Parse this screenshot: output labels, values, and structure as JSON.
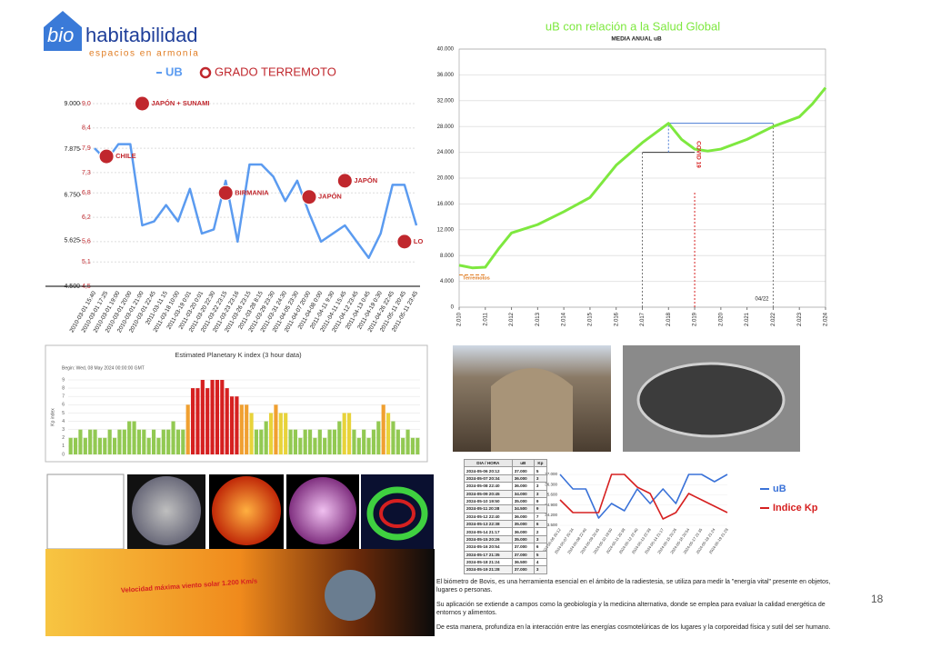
{
  "logo": {
    "mark": "bio",
    "name": "habitabilidad",
    "tagline": "espacios en armonía"
  },
  "chart_data": [
    {
      "type": "line",
      "legend": [
        "UB",
        "GRADO TERREMOTO"
      ],
      "categories": [
        "2010-03-01 15:40",
        "2010-03-01 17:25",
        "2010-03-01 19:00",
        "2010-03-01 20:00",
        "2010-03-01 21:00",
        "2010-03-01 22:45",
        "2011-03-11 15",
        "2011-03-18 10:00",
        "2011-03-19 0:01",
        "2011-03-20 0:01",
        "2011-03-20 22:30",
        "2011-03-22 23:15",
        "2011-03-23 23:16",
        "2011-03-26 23:15",
        "2011-03-28 8:15",
        "2011-03-29 23:30",
        "2011-03-31 24:30",
        "2011-04-05 23:30",
        "2011-04-07 20:00",
        "2011-04-08 0:00",
        "2011-04-11 9:30",
        "2011-04-11 15:45",
        "2011-04-12 23:45",
        "2011-04-13 0:45",
        "2011-04-19 0:30",
        "2011-04-26 22:45",
        "2011-05-11 20:45",
        "2011-05-11 23:45"
      ],
      "series": [
        {
          "name": "UB",
          "color": "#5b9bf0",
          "values": [
            7900,
            7600,
            8000,
            8000,
            6000,
            6100,
            6500,
            6100,
            6900,
            5800,
            5900,
            7100,
            5600,
            7500,
            7500,
            7200,
            6600,
            7100,
            6300,
            5600,
            5800,
            6000,
            5600,
            5200,
            5800,
            7000,
            7000,
            6000
          ]
        },
        {
          "name": "GRADO TERREMOTO",
          "type": "scatter",
          "axis": "y2",
          "color": "#c0272d",
          "values": [
            null,
            7.7,
            null,
            null,
            9.0,
            null,
            null,
            null,
            null,
            null,
            null,
            6.8,
            null,
            null,
            null,
            null,
            null,
            null,
            6.7,
            null,
            null,
            7.1,
            null,
            null,
            null,
            null,
            5.6,
            null
          ],
          "point_labels": [
            null,
            "CHILE",
            null,
            null,
            "JAPÓN + SUNAMI",
            null,
            null,
            null,
            null,
            null,
            null,
            "BIRMANIA",
            null,
            null,
            null,
            null,
            null,
            null,
            "JAPÓN",
            null,
            null,
            "JAPÓN",
            null,
            null,
            null,
            null,
            "LO",
            null
          ]
        }
      ],
      "ylim": [
        4500,
        9000
      ],
      "yticks": [
        {
          "value": 4500,
          "label": "4.500"
        },
        {
          "value": 5625,
          "label": "5.625"
        },
        {
          "value": 6750,
          "label": "6.750"
        },
        {
          "value": 7875,
          "label": "7.875"
        },
        {
          "value": 9000,
          "label": "9.000"
        }
      ],
      "y2lim": [
        4.5,
        9.0
      ],
      "y2ticks": [
        {
          "value": 4.5,
          "label": "4,5"
        },
        {
          "value": 5.1,
          "label": "5,1"
        },
        {
          "value": 5.6,
          "label": "5,6"
        },
        {
          "value": 6.2,
          "label": "6,2"
        },
        {
          "value": 6.8,
          "label": "6,8"
        },
        {
          "value": 7.3,
          "label": "7,3"
        },
        {
          "value": 7.9,
          "label": "7,9"
        },
        {
          "value": 8.4,
          "label": "8,4"
        },
        {
          "value": 9.0,
          "label": "9,0"
        }
      ],
      "grid": true
    },
    {
      "type": "line",
      "title": "uB con relación a la Salud Global",
      "subtitle": "MEDIA ANUAL uB",
      "x": [
        2010,
        2010.5,
        2011,
        2011.5,
        2012,
        2013,
        2014,
        2015,
        2016,
        2017,
        2017.5,
        2018,
        2018.5,
        2019,
        2019.5,
        2020,
        2021,
        2022,
        2023,
        2023.5,
        2024
      ],
      "values": [
        6500,
        6100,
        6200,
        9000,
        11500,
        12800,
        14800,
        17000,
        22000,
        25500,
        27000,
        28500,
        26000,
        24500,
        24200,
        24500,
        26000,
        28000,
        29500,
        31500,
        34000
      ],
      "color": "#7ee83f",
      "xlim": [
        2010,
        2024
      ],
      "xticks": [
        {
          "value": 2010,
          "label": "2.010"
        },
        {
          "value": 2011,
          "label": "2.011"
        },
        {
          "value": 2012,
          "label": "2.012"
        },
        {
          "value": 2013,
          "label": "2.013"
        },
        {
          "value": 2014,
          "label": "2.014"
        },
        {
          "value": 2015,
          "label": "2.015"
        },
        {
          "value": 2016,
          "label": "2.016"
        },
        {
          "value": 2017,
          "label": "2.017"
        },
        {
          "value": 2018,
          "label": "2.018"
        },
        {
          "value": 2019,
          "label": "2.019"
        },
        {
          "value": 2020,
          "label": "2.020"
        },
        {
          "value": 2021,
          "label": "2.021"
        },
        {
          "value": 2022,
          "label": "2.022"
        },
        {
          "value": 2023,
          "label": "2.023"
        },
        {
          "value": 2024,
          "label": "2.024"
        }
      ],
      "ylim": [
        0,
        40000
      ],
      "yticks": [
        0,
        {
          "value": 4000,
          "label": "4.000"
        },
        {
          "value": 8000,
          "label": "8.000"
        },
        {
          "value": 12000,
          "label": "12.000"
        },
        {
          "value": 16000,
          "label": "16.000"
        },
        {
          "value": 20000,
          "label": "20.000"
        },
        {
          "value": 24000,
          "label": "24.000"
        },
        {
          "value": 28000,
          "label": "28.000"
        },
        {
          "value": 32000,
          "label": "32.000"
        },
        {
          "value": 36000,
          "label": "36.000"
        },
        {
          "value": 40000,
          "label": "40.000"
        }
      ],
      "grid": true,
      "reference_lines": [
        {
          "x": [
            2010,
            2011
          ],
          "y": [
            5000,
            5000
          ],
          "color": "#e07b20"
        },
        {
          "x": [
            2017,
            2019
          ],
          "y": [
            24000,
            24000
          ],
          "color": "#333333"
        },
        {
          "x": [
            2018,
            2022
          ],
          "y": [
            28500,
            28500
          ],
          "color": "#4a7bd4"
        },
        {
          "x": [
            2018,
            2018
          ],
          "y": [
            24000,
            28500
          ],
          "color": "#4a7bd4"
        },
        {
          "x": [
            2017,
            2017
          ],
          "y": [
            0,
            24000
          ],
          "color": "#777777"
        },
        {
          "x": [
            2022,
            2022
          ],
          "y": [
            0,
            28500
          ],
          "color": "#777777"
        },
        {
          "x": [
            2019,
            2019
          ],
          "y": [
            0,
            18000
          ],
          "color": "#d62020"
        }
      ],
      "annotations": [
        "Terremotos",
        "COVID 19",
        "04/22"
      ]
    },
    {
      "type": "bar",
      "title": "Estimated Planetary K index (3 hour data)",
      "subtitle": "Begin: Wed, 08 May 2024 00:00:00 GMT",
      "y_label": "Kp index",
      "values": [
        2,
        2,
        3,
        2,
        3,
        3,
        2,
        2,
        3,
        2,
        3,
        3,
        4,
        4,
        3,
        3,
        2,
        3,
        2,
        3,
        3,
        4,
        3,
        3,
        6,
        8,
        8,
        9,
        8,
        9,
        9,
        9,
        8,
        7,
        7,
        6,
        6,
        5,
        3,
        3,
        4,
        5,
        6,
        5,
        5,
        3,
        3,
        2,
        3,
        3,
        2,
        3,
        2,
        3,
        3,
        4,
        5,
        5,
        3,
        2,
        3,
        2,
        3,
        4,
        6,
        5,
        4,
        3,
        2,
        3,
        2,
        2
      ],
      "color_scale": [
        {
          "min": 0,
          "color": "#92c952"
        },
        {
          "min": 5,
          "color": "#e8d33a"
        },
        {
          "min": 6,
          "color": "#f0a030"
        },
        {
          "min": 7,
          "color": "#d62020"
        }
      ],
      "ylim": [
        0,
        9
      ],
      "yticks": [
        0,
        1,
        2,
        3,
        4,
        5,
        6,
        7,
        8,
        9
      ],
      "grid": true
    },
    {
      "type": "line",
      "categories": [
        "2024-05-06 20:12",
        "2024-05-07 20:34",
        "2024-05-08 22:40",
        "2024-05-09 20:45",
        "2024-05-10 19:50",
        "2024-05-11 20:38",
        "2024-05-12 22:40",
        "2024-05-13 22:38",
        "2024-05-14 21:17",
        "2024-05-15 20:26",
        "2024-05-16 20:54",
        "2024-05-17 21:35",
        "2024-05-18 21:24",
        "2024-05-19 21:28"
      ],
      "series": [
        {
          "name": "uB",
          "color": "#3a72d8",
          "values": [
            37000,
            36000,
            36000,
            34000,
            35000,
            34500,
            36000,
            35000,
            36000,
            35000,
            37000,
            37000,
            36500,
            37000
          ]
        },
        {
          "name": "Indice Kp",
          "color": "#d62020",
          "axis": "y2",
          "values": [
            5,
            3,
            3,
            3,
            9,
            9,
            7,
            6,
            2,
            3,
            6,
            5,
            4,
            3
          ]
        }
      ],
      "ylim": [
        33500,
        37000
      ],
      "yticks": [
        {
          "value": 33500,
          "label": "33.500"
        },
        {
          "value": 34200,
          "label": "34.200"
        },
        {
          "value": 34900,
          "label": "34.900"
        },
        {
          "value": 35600,
          "label": "35.600"
        },
        {
          "value": 36300,
          "label": "36.300"
        },
        {
          "value": 37000,
          "label": "37.000"
        }
      ],
      "y2lim": [
        1,
        9
      ],
      "grid": true
    }
  ],
  "table": {
    "header": [
      "DIA / HORA",
      "uB",
      "Kp"
    ],
    "rows": [
      [
        "2024-05-06 20:12",
        "37.000",
        "5"
      ],
      [
        "2024-05-07 20:34",
        "36.000",
        "3"
      ],
      [
        "2024-05-08 22:40",
        "36.000",
        "3"
      ],
      [
        "2024-05-09 20:45",
        "34.000",
        "3"
      ],
      [
        "2024-05-10 19:50",
        "35.000",
        "9"
      ],
      [
        "2024-05-11 20:38",
        "34.500",
        "9"
      ],
      [
        "2024-05-12 22:40",
        "36.000",
        "7"
      ],
      [
        "2024-05-13 22:38",
        "35.000",
        "6"
      ],
      [
        "2024-05-14 21:17",
        "36.000",
        "2"
      ],
      [
        "2024-05-15 20:26",
        "35.000",
        "3"
      ],
      [
        "2024-05-16 20:54",
        "37.000",
        "6"
      ],
      [
        "2024-05-17 21:35",
        "37.000",
        "5"
      ],
      [
        "2024-05-18 21:24",
        "36.500",
        "4"
      ],
      [
        "2024-05-19 21:28",
        "37.000",
        "3"
      ]
    ]
  },
  "banner": "Velocidad máxima viento solar 1.200 Km/s",
  "paragraphs": [
    "El biómetro de Bovis, es una herramienta esencial en el ámbito de la radiestesia, se utiliza para medir la \"energía vital\" presente en objetos, lugares o personas.",
    "Su aplicación se extiende a campos como la geobiología y la medicina alternativa, donde se emplea para evaluar la calidad energética de entornos y alimentos.",
    "De esta manera, profundiza en la interacción entre las energías cosmotelúricas de los lugares y la corporeidad física y sutil del ser humano."
  ],
  "page_number": "18"
}
